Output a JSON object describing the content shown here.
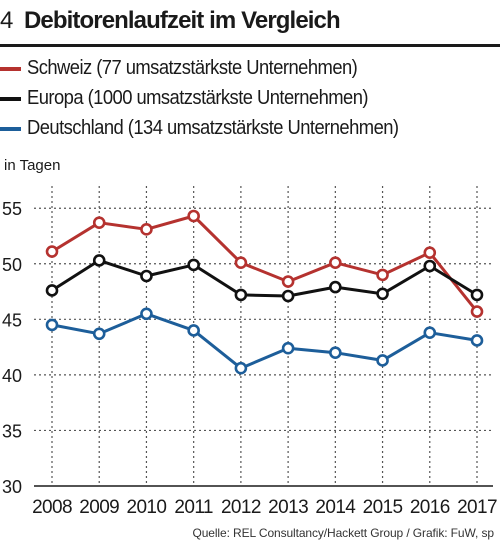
{
  "header": {
    "figure_number": "4",
    "title": "Debitorenlaufzeit im Vergleich"
  },
  "source": "Quelle: REL Consultancy/Hackett Group / Grafik: FuW, sp",
  "colors": {
    "schweiz": "#b5322f",
    "europa": "#111111",
    "deutschland": "#1d5e9a",
    "grid": "#555555",
    "text": "#1a1a1a"
  },
  "chart_data": {
    "type": "line",
    "ylabel": "in Tagen",
    "xlabel": "",
    "x": [
      "2008",
      "2009",
      "2010",
      "2011",
      "2012",
      "2013",
      "2014",
      "2015",
      "2016",
      "2017"
    ],
    "yticks": [
      30,
      35,
      40,
      45,
      50,
      55
    ],
    "ylim": [
      30,
      57
    ],
    "grid": true,
    "legend_position": "top-left",
    "series": [
      {
        "key": "schweiz",
        "name": "Schweiz (77 umsatzstärkste Unternehmen)",
        "values": [
          51.1,
          53.7,
          53.1,
          54.3,
          50.1,
          48.4,
          50.1,
          49.0,
          51.0,
          45.7
        ]
      },
      {
        "key": "europa",
        "name": "Europa (1000 umsatzstärkste Unternehmen)",
        "values": [
          47.6,
          50.3,
          48.9,
          49.9,
          47.2,
          47.1,
          47.9,
          47.3,
          49.8,
          47.2
        ]
      },
      {
        "key": "deutschland",
        "name": "Deutschland (134 umsatzstärkste Unternehmen)",
        "values": [
          44.5,
          43.7,
          45.5,
          44.0,
          40.6,
          42.4,
          42.0,
          41.3,
          43.8,
          43.1
        ]
      }
    ]
  }
}
